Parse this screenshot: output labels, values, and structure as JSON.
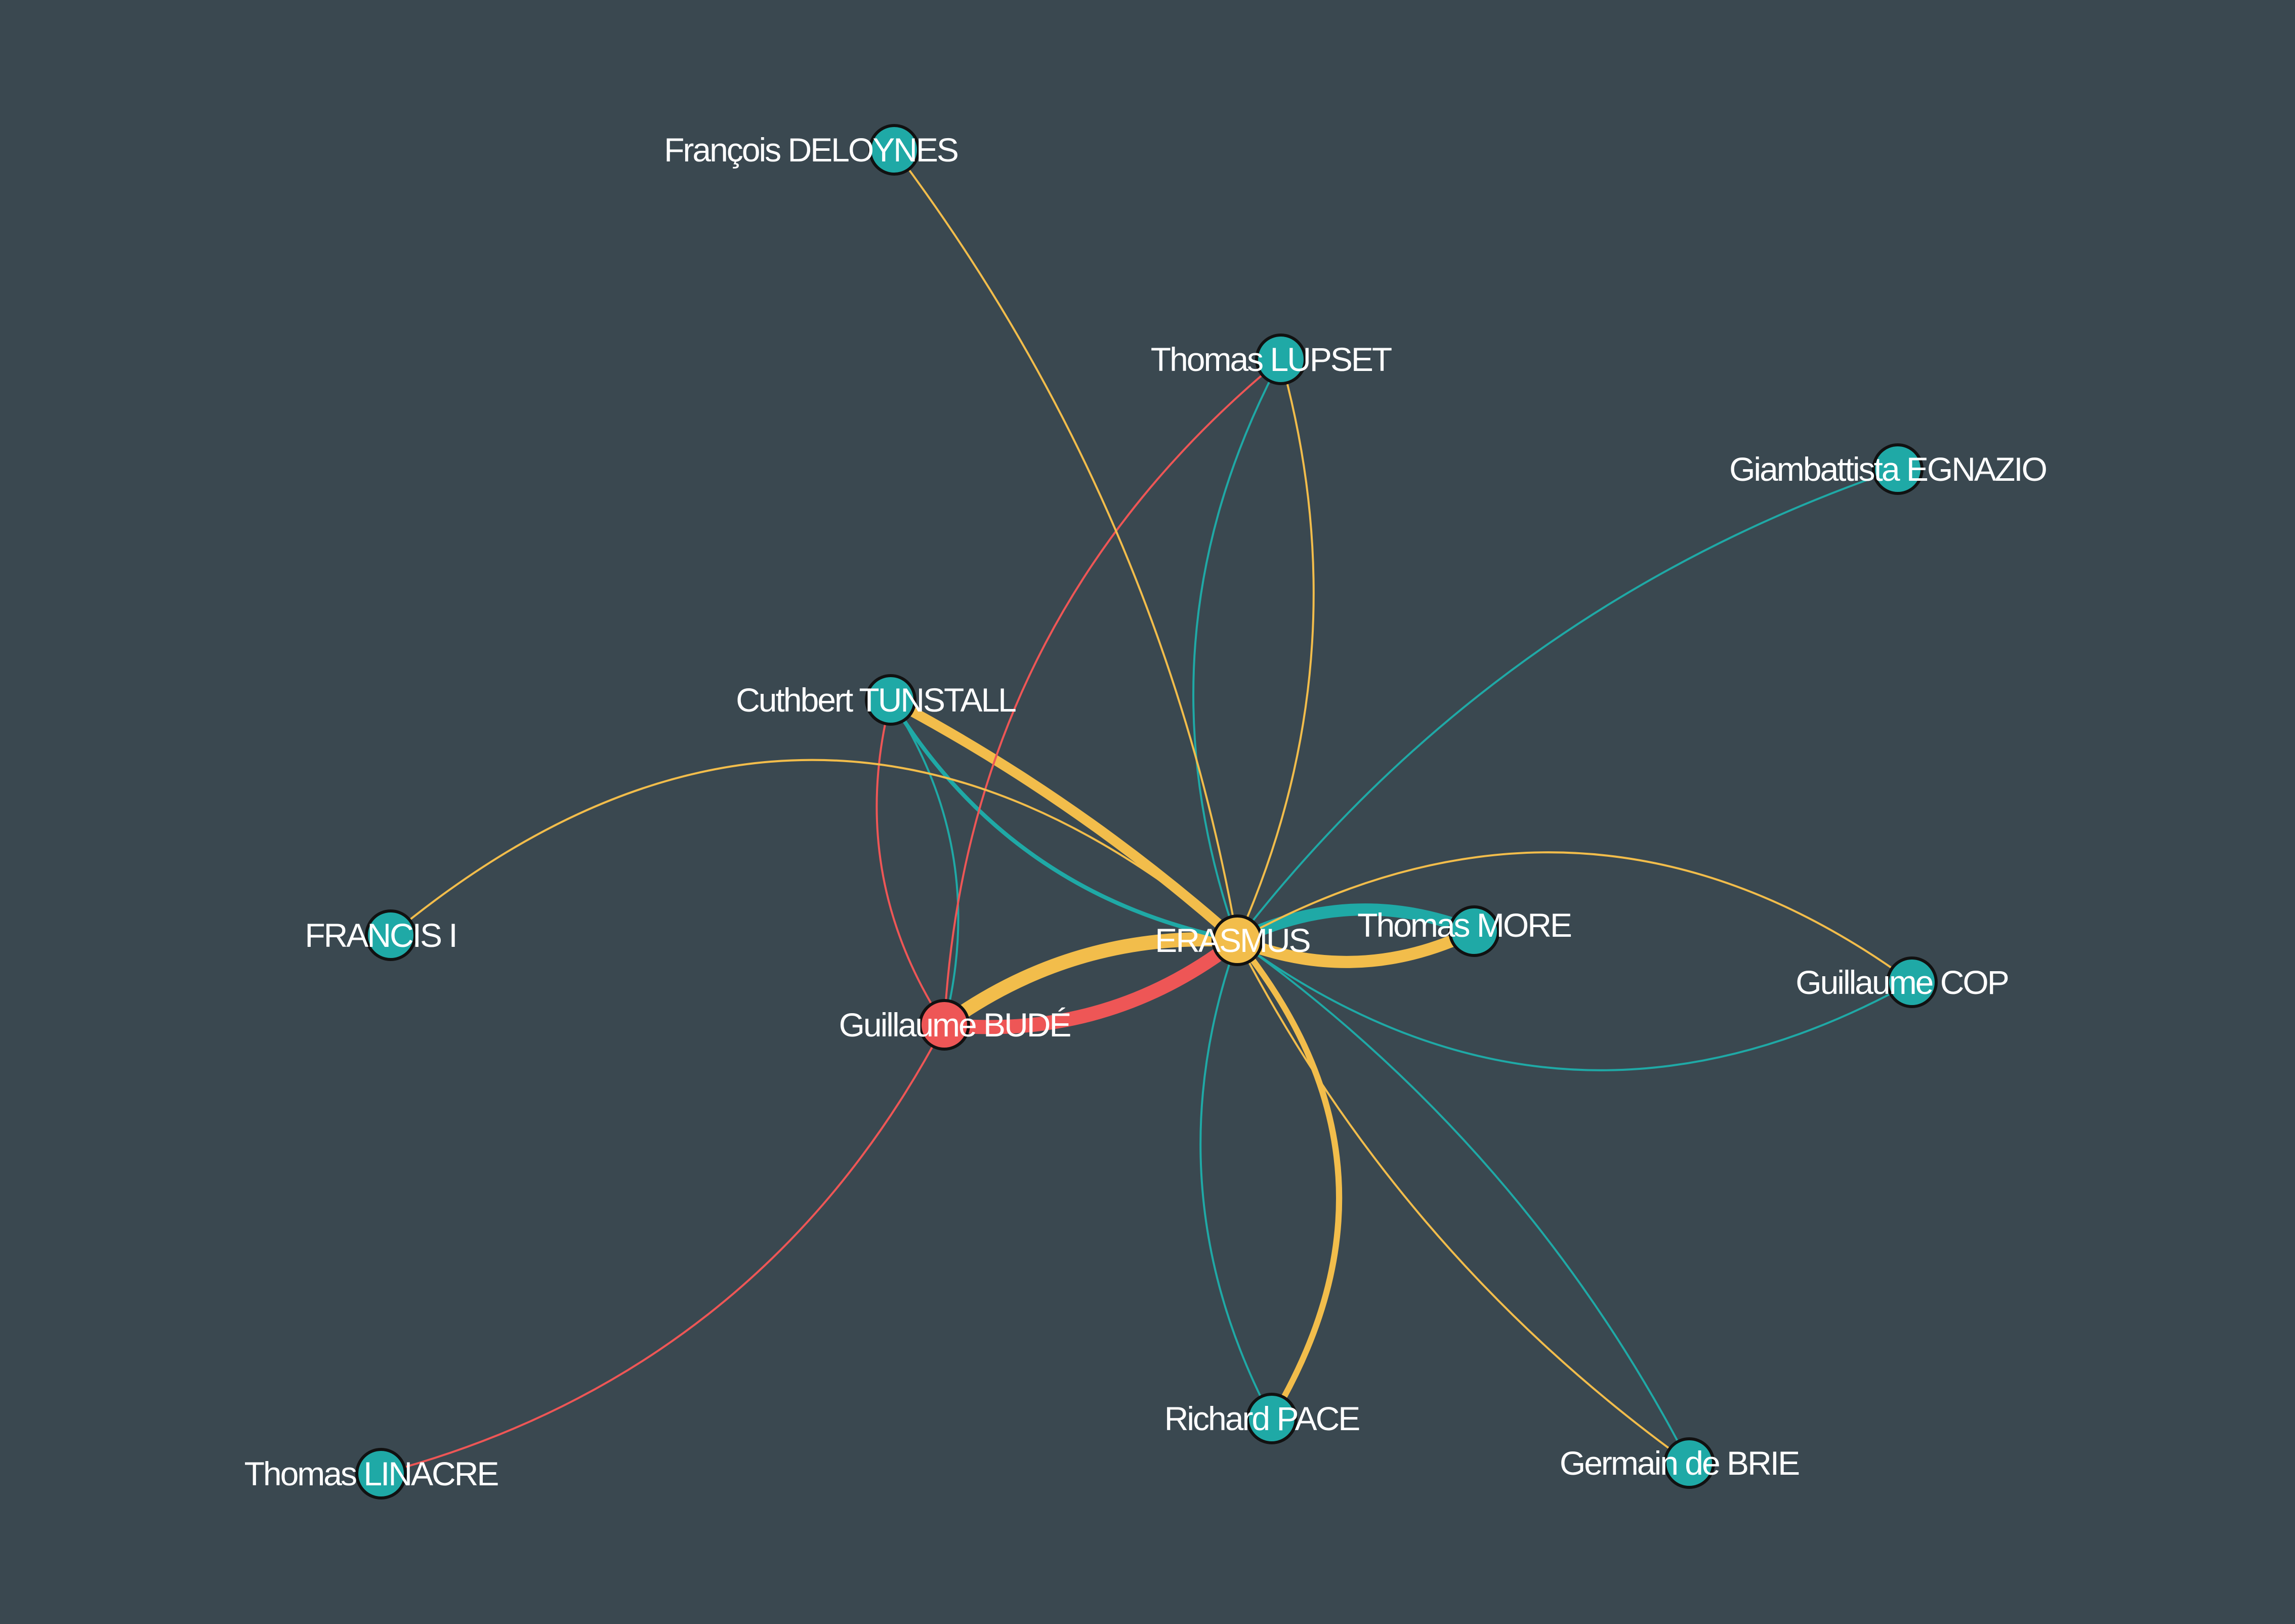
{
  "colors": {
    "background": "#3a4850",
    "teal": "#1fa9a6",
    "yellow": "#f2bd4b",
    "red": "#ee5656"
  },
  "nodes": [
    {
      "id": "erasmus",
      "label": "ERASMUS",
      "color": "yellow"
    },
    {
      "id": "bude",
      "label": "Guillaume BUDÉ",
      "color": "red"
    },
    {
      "id": "more",
      "label": "Thomas MORE",
      "color": "teal"
    },
    {
      "id": "tunstall",
      "label": "Cuthbert TUNSTALL",
      "color": "teal"
    },
    {
      "id": "lupset",
      "label": "Thomas LUPSET",
      "color": "teal"
    },
    {
      "id": "deloynes",
      "label": "François DELOYNES",
      "color": "teal"
    },
    {
      "id": "egnazio",
      "label": "Giambattista EGNAZIO",
      "color": "teal"
    },
    {
      "id": "francis",
      "label": "FRANCIS I",
      "color": "teal"
    },
    {
      "id": "cop",
      "label": "Guillaume COP",
      "color": "teal"
    },
    {
      "id": "pace",
      "label": "Richard PACE",
      "color": "teal"
    },
    {
      "id": "brie",
      "label": "Germain de BRIE",
      "color": "teal"
    },
    {
      "id": "linacre",
      "label": "Thomas LINACRE",
      "color": "teal"
    }
  ],
  "edges": [
    {
      "source": "erasmus",
      "target": "bude",
      "color": "yellow",
      "weight": 7
    },
    {
      "source": "bude",
      "target": "erasmus",
      "color": "red",
      "weight": 7
    },
    {
      "source": "erasmus",
      "target": "more",
      "color": "yellow",
      "weight": 6
    },
    {
      "source": "more",
      "target": "erasmus",
      "color": "teal",
      "weight": 6
    },
    {
      "source": "tunstall",
      "target": "erasmus",
      "color": "yellow",
      "weight": 5
    },
    {
      "source": "tunstall",
      "target": "erasmus",
      "color": "teal",
      "weight": 2
    },
    {
      "source": "tunstall",
      "target": "bude",
      "color": "red",
      "weight": 1
    },
    {
      "source": "tunstall",
      "target": "bude",
      "color": "teal",
      "weight": 1
    },
    {
      "source": "lupset",
      "target": "erasmus",
      "color": "yellow",
      "weight": 1
    },
    {
      "source": "lupset",
      "target": "erasmus",
      "color": "teal",
      "weight": 1
    },
    {
      "source": "lupset",
      "target": "bude",
      "color": "red",
      "weight": 1
    },
    {
      "source": "deloynes",
      "target": "erasmus",
      "color": "yellow",
      "weight": 1
    },
    {
      "source": "egnazio",
      "target": "erasmus",
      "color": "teal",
      "weight": 1
    },
    {
      "source": "francis",
      "target": "erasmus",
      "color": "yellow",
      "weight": 1
    },
    {
      "source": "cop",
      "target": "erasmus",
      "color": "yellow",
      "weight": 1
    },
    {
      "source": "cop",
      "target": "erasmus",
      "color": "teal",
      "weight": 1
    },
    {
      "source": "pace",
      "target": "erasmus",
      "color": "yellow",
      "weight": 3
    },
    {
      "source": "pace",
      "target": "erasmus",
      "color": "teal",
      "weight": 1
    },
    {
      "source": "brie",
      "target": "erasmus",
      "color": "yellow",
      "weight": 1
    },
    {
      "source": "brie",
      "target": "erasmus",
      "color": "teal",
      "weight": 1
    },
    {
      "source": "linacre",
      "target": "bude",
      "color": "red",
      "weight": 1
    }
  ]
}
